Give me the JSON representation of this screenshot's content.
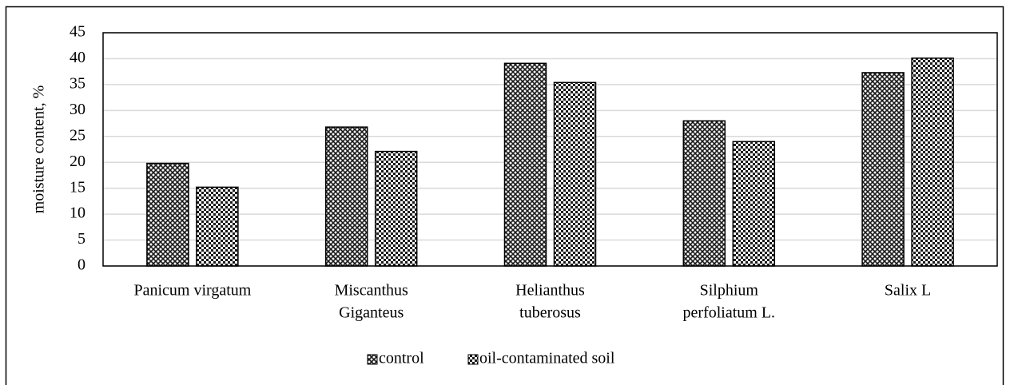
{
  "chart_data": {
    "type": "bar",
    "y_label": "moisture content, %",
    "categories": [
      [
        "Panicum virgatum"
      ],
      [
        "Miscanthus",
        "Giganteus"
      ],
      [
        "Helianthus",
        "tuberosus"
      ],
      [
        "Silphium",
        "perfoliatum L."
      ],
      [
        "Salix L"
      ]
    ],
    "series": [
      {
        "name": "control",
        "color": "#1a1a1a",
        "pattern": "crosshatch",
        "values": [
          19.8,
          26.8,
          39.1,
          28,
          37.3
        ]
      },
      {
        "name": "oil-contaminated soil",
        "color": "#1a1a1a",
        "pattern": "checker",
        "values": [
          15.2,
          22.1,
          35.4,
          24,
          40.1
        ]
      }
    ],
    "ylim": [
      0,
      45
    ],
    "yticks": [
      0,
      5,
      10,
      15,
      20,
      25,
      30,
      35,
      40,
      45
    ],
    "grid": true,
    "legend": "bottom"
  }
}
